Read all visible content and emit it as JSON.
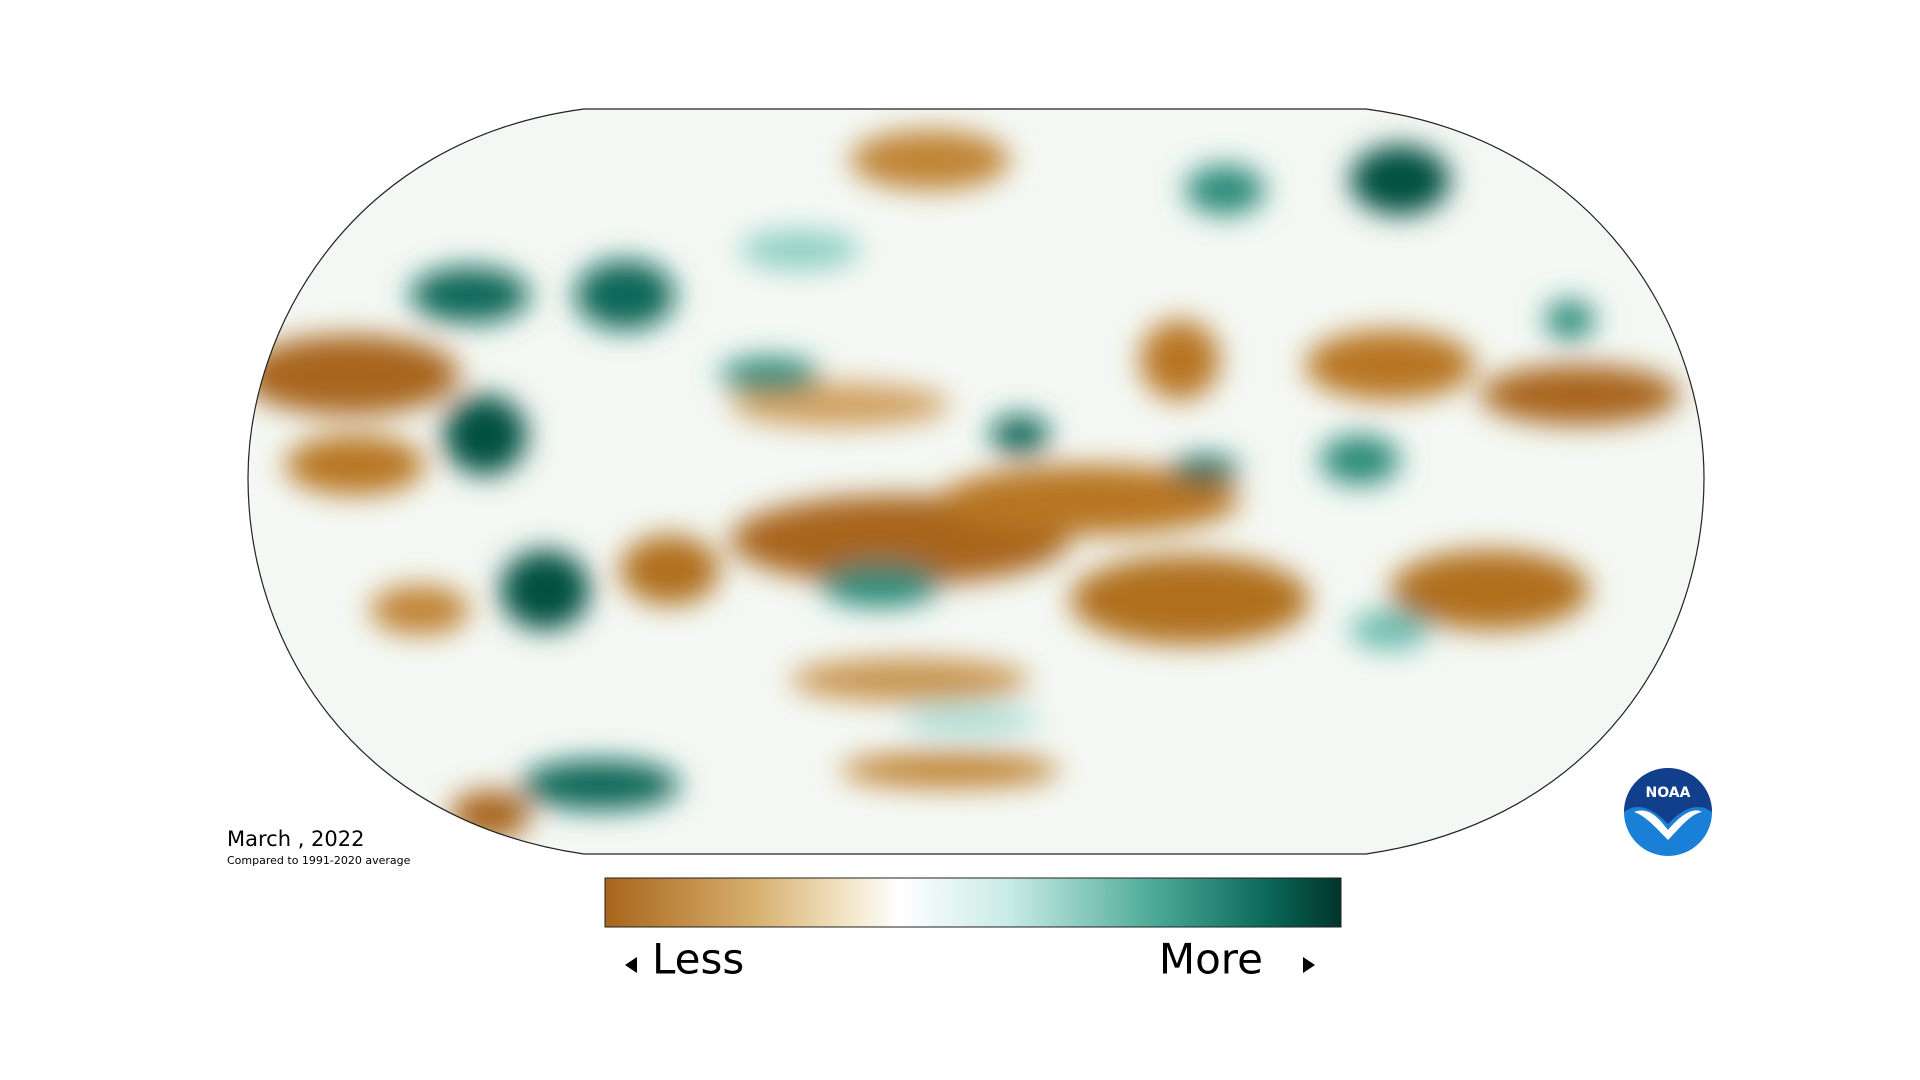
{
  "date_label": "March , 2022",
  "subtitle": "Compared to 1991-2020 average",
  "legend": {
    "low_label": "Less",
    "high_label": "More"
  },
  "logo": "NOAA"
}
